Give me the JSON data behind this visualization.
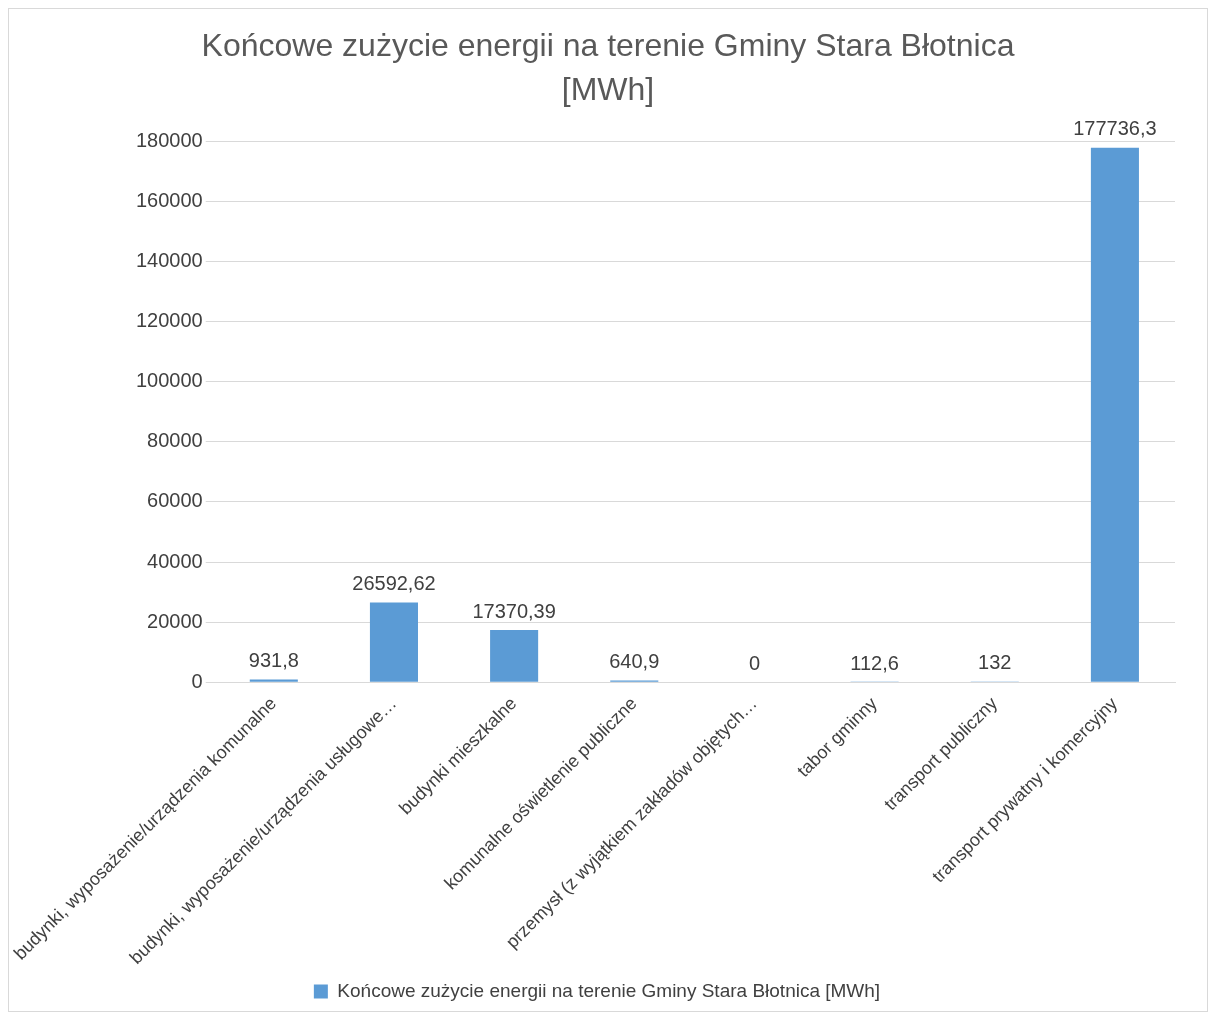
{
  "chart_data": {
    "type": "bar",
    "title": "Końcowe zużycie energii na terenie Gminy Stara Błotnica [MWh]",
    "categories": [
      "budynki, wyposażenie/urządzenia komunalne",
      "budynki, wyposażenie/urządzenia usługowe…",
      "budynki mieszkalne",
      "komunalne oświetlenie publiczne",
      "przemysł (z wyjątkiem zakładów objętych…",
      "tabor gminny",
      "transport publiczny",
      "transport prywatny i komercyjny"
    ],
    "series": [
      {
        "name": "Końcowe zużycie energii na terenie Gminy Stara Błotnica [MWh]",
        "color": "#5b9bd5",
        "values": [
          931.8,
          26592.62,
          17370.39,
          640.9,
          0,
          112.6,
          132,
          177736.3
        ],
        "value_labels": [
          "931,8",
          "26592,62",
          "17370,39",
          "640,9",
          "0",
          "112,6",
          "132",
          "177736,3"
        ]
      }
    ],
    "ylim": [
      0,
      180000
    ],
    "yticks": [
      0,
      20000,
      40000,
      60000,
      80000,
      100000,
      120000,
      140000,
      160000,
      180000
    ],
    "grid": "y",
    "legend": "bottom"
  }
}
